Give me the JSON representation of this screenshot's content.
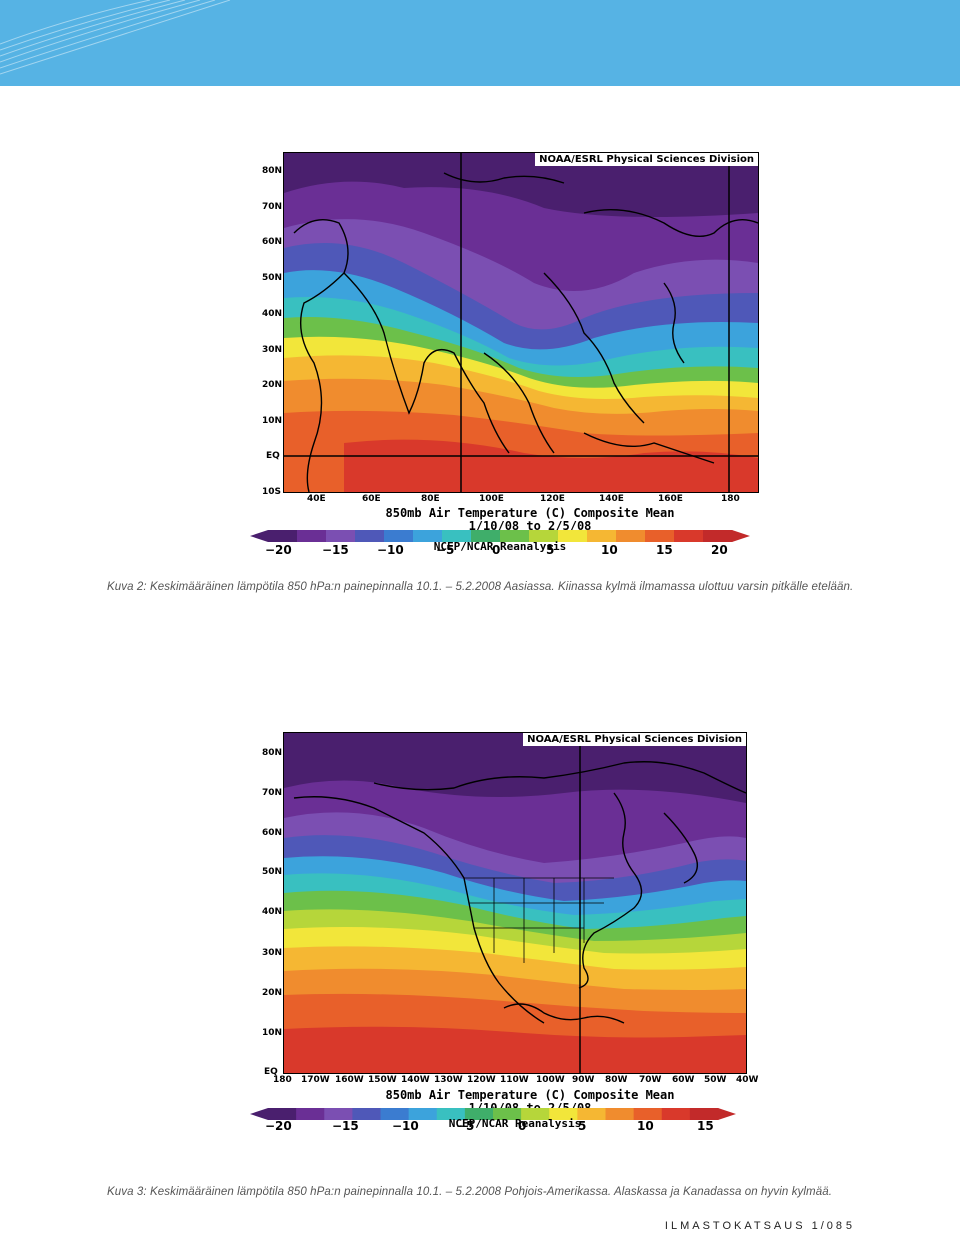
{
  "header": {
    "band_color": "#56b3e4"
  },
  "figure1": {
    "title": "NOAA/ESRL Physical Sciences Division",
    "lat_labels": [
      "80N",
      "70N",
      "60N",
      "50N",
      "40N",
      "30N",
      "20N",
      "10N",
      "EQ",
      "10S"
    ],
    "lon_labels": [
      "40E",
      "60E",
      "80E",
      "100E",
      "120E",
      "140E",
      "160E",
      "180"
    ],
    "chart_title": "850mb Air Temperature (C) Composite Mean",
    "date_range": "1/10/08  to 2/5/08",
    "source": "NCEP/NCAR Reanalysis",
    "colorbar_ticks": [
      "−20",
      "−15",
      "−10",
      "−5",
      "0",
      "5",
      "10",
      "15",
      "20"
    ],
    "caption": "Kuva 2: Keskimääräinen lämpötila 850 hPa:n painepinnalla 10.1. – 5.2.2008 Aasiassa. Kiinassa kylmä ilmamassa ulottuu varsin pitkälle etelään."
  },
  "figure2": {
    "title": "NOAA/ESRL Physical Sciences Division",
    "lat_labels": [
      "80N",
      "70N",
      "60N",
      "50N",
      "40N",
      "30N",
      "20N",
      "10N",
      "EQ"
    ],
    "lon_labels": [
      "180",
      "170W",
      "160W",
      "150W",
      "140W",
      "130W",
      "120W",
      "110W",
      "100W",
      "90W",
      "80W",
      "70W",
      "60W",
      "50W",
      "40W"
    ],
    "chart_title": "850mb Air Temperature (C) Composite Mean",
    "date_range": "1/10/08  to 2/5/08",
    "source": "NCEP/NCAR Reanalysis",
    "colorbar_ticks": [
      "−20",
      "−15",
      "−10",
      "−5",
      "0",
      "5",
      "10",
      "15"
    ],
    "caption": "Kuva 3: Keskimääräinen lämpötila 850 hPa:n painepinnalla 10.1. – 5.2.2008 Pohjois-Amerikassa. Alaskassa ja Kanadassa on hyvin kylmää."
  },
  "colorscale": [
    "#4a1f6e",
    "#6a2f95",
    "#7b4fb2",
    "#4f58b8",
    "#3b7cd0",
    "#3ca3dc",
    "#39c0c0",
    "#3fae6a",
    "#6cc04a",
    "#b6d63a",
    "#f2e63a",
    "#f5b733",
    "#f08c2e",
    "#e8602a",
    "#d9392b",
    "#c22a2a"
  ],
  "footer": {
    "publication": "ILMASTOKATSAUS 1/08",
    "page": "5"
  }
}
